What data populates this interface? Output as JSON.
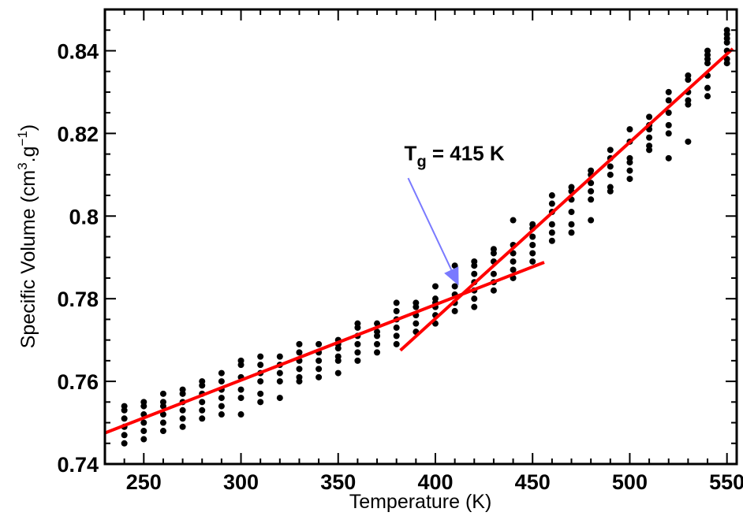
{
  "chart_data": {
    "type": "scatter",
    "title": "",
    "xlabel": "Temperature (K)",
    "ylabel": {
      "main": "Specific Volume (cm",
      "sup1": "3",
      "mid": ".g",
      "sup2": "−1",
      "end": ")"
    },
    "xlim": [
      230,
      555
    ],
    "ylim": [
      0.74,
      0.85
    ],
    "xticks": [
      250,
      300,
      350,
      400,
      450,
      500,
      550
    ],
    "yticks": [
      0.74,
      0.76,
      0.78,
      0.8,
      0.82,
      0.84
    ],
    "xtick_labels": [
      "250",
      "300",
      "350",
      "400",
      "450",
      "500",
      "550"
    ],
    "ytick_labels": [
      "0.74",
      "0.76",
      "0.78",
      "0.8",
      "0.82",
      "0.84"
    ],
    "grid": false,
    "legend": "none",
    "colors": {
      "points": "#000000",
      "fit": "#ff0000",
      "arrow": "#7a7aff"
    },
    "series": [
      {
        "type": "scatter",
        "points": [
          [
            240,
            0.745
          ],
          [
            240,
            0.747
          ],
          [
            240,
            0.749
          ],
          [
            240,
            0.751
          ],
          [
            240,
            0.753
          ],
          [
            240,
            0.754
          ],
          [
            250,
            0.746
          ],
          [
            250,
            0.748
          ],
          [
            250,
            0.75
          ],
          [
            250,
            0.752
          ],
          [
            250,
            0.754
          ],
          [
            250,
            0.755
          ],
          [
            260,
            0.748
          ],
          [
            260,
            0.75
          ],
          [
            260,
            0.752
          ],
          [
            260,
            0.754
          ],
          [
            260,
            0.755
          ],
          [
            260,
            0.757
          ],
          [
            270,
            0.749
          ],
          [
            270,
            0.751
          ],
          [
            270,
            0.753
          ],
          [
            270,
            0.755
          ],
          [
            270,
            0.757
          ],
          [
            270,
            0.758
          ],
          [
            280,
            0.751
          ],
          [
            280,
            0.753
          ],
          [
            280,
            0.755
          ],
          [
            280,
            0.757
          ],
          [
            280,
            0.759
          ],
          [
            280,
            0.76
          ],
          [
            290,
            0.752
          ],
          [
            290,
            0.754
          ],
          [
            290,
            0.756
          ],
          [
            290,
            0.758
          ],
          [
            290,
            0.76
          ],
          [
            290,
            0.762
          ],
          [
            300,
            0.752
          ],
          [
            300,
            0.756
          ],
          [
            300,
            0.758
          ],
          [
            300,
            0.761
          ],
          [
            300,
            0.764
          ],
          [
            300,
            0.765
          ],
          [
            310,
            0.755
          ],
          [
            310,
            0.757
          ],
          [
            310,
            0.76
          ],
          [
            310,
            0.762
          ],
          [
            310,
            0.764
          ],
          [
            310,
            0.766
          ],
          [
            320,
            0.756
          ],
          [
            320,
            0.76
          ],
          [
            320,
            0.762
          ],
          [
            320,
            0.764
          ],
          [
            320,
            0.766
          ],
          [
            330,
            0.76
          ],
          [
            330,
            0.761
          ],
          [
            330,
            0.763
          ],
          [
            330,
            0.765
          ],
          [
            330,
            0.767
          ],
          [
            330,
            0.769
          ],
          [
            340,
            0.761
          ],
          [
            340,
            0.763
          ],
          [
            340,
            0.765
          ],
          [
            340,
            0.767
          ],
          [
            340,
            0.769
          ],
          [
            350,
            0.762
          ],
          [
            350,
            0.765
          ],
          [
            350,
            0.766
          ],
          [
            350,
            0.768
          ],
          [
            350,
            0.769
          ],
          [
            350,
            0.77
          ],
          [
            360,
            0.765
          ],
          [
            360,
            0.767
          ],
          [
            360,
            0.769
          ],
          [
            360,
            0.771
          ],
          [
            360,
            0.773
          ],
          [
            360,
            0.774
          ],
          [
            370,
            0.767
          ],
          [
            370,
            0.769
          ],
          [
            370,
            0.771
          ],
          [
            370,
            0.772
          ],
          [
            370,
            0.774
          ],
          [
            380,
            0.769
          ],
          [
            380,
            0.771
          ],
          [
            380,
            0.773
          ],
          [
            380,
            0.775
          ],
          [
            380,
            0.777
          ],
          [
            380,
            0.779
          ],
          [
            390,
            0.772
          ],
          [
            390,
            0.774
          ],
          [
            390,
            0.776
          ],
          [
            390,
            0.778
          ],
          [
            390,
            0.779
          ],
          [
            400,
            0.774
          ],
          [
            400,
            0.776
          ],
          [
            400,
            0.778
          ],
          [
            400,
            0.779
          ],
          [
            400,
            0.78
          ],
          [
            400,
            0.783
          ],
          [
            410,
            0.777
          ],
          [
            410,
            0.779
          ],
          [
            410,
            0.781
          ],
          [
            410,
            0.783
          ],
          [
            410,
            0.785
          ],
          [
            410,
            0.786
          ],
          [
            410,
            0.788
          ],
          [
            420,
            0.778
          ],
          [
            420,
            0.78
          ],
          [
            420,
            0.782
          ],
          [
            420,
            0.784
          ],
          [
            420,
            0.786
          ],
          [
            420,
            0.788
          ],
          [
            420,
            0.789
          ],
          [
            430,
            0.782
          ],
          [
            430,
            0.784
          ],
          [
            430,
            0.786
          ],
          [
            430,
            0.789
          ],
          [
            430,
            0.791
          ],
          [
            430,
            0.792
          ],
          [
            440,
            0.785
          ],
          [
            440,
            0.787
          ],
          [
            440,
            0.789
          ],
          [
            440,
            0.791
          ],
          [
            440,
            0.793
          ],
          [
            440,
            0.799
          ],
          [
            450,
            0.789
          ],
          [
            450,
            0.791
          ],
          [
            450,
            0.793
          ],
          [
            450,
            0.795
          ],
          [
            450,
            0.797
          ],
          [
            450,
            0.798
          ],
          [
            460,
            0.794
          ],
          [
            460,
            0.796
          ],
          [
            460,
            0.798
          ],
          [
            460,
            0.801
          ],
          [
            460,
            0.803
          ],
          [
            460,
            0.805
          ],
          [
            470,
            0.796
          ],
          [
            470,
            0.798
          ],
          [
            470,
            0.801
          ],
          [
            470,
            0.804
          ],
          [
            470,
            0.806
          ],
          [
            470,
            0.807
          ],
          [
            480,
            0.799
          ],
          [
            480,
            0.804
          ],
          [
            480,
            0.806
          ],
          [
            480,
            0.808
          ],
          [
            480,
            0.81
          ],
          [
            480,
            0.811
          ],
          [
            490,
            0.806
          ],
          [
            490,
            0.807
          ],
          [
            490,
            0.81
          ],
          [
            490,
            0.812
          ],
          [
            490,
            0.814
          ],
          [
            490,
            0.816
          ],
          [
            500,
            0.809
          ],
          [
            500,
            0.811
          ],
          [
            500,
            0.813
          ],
          [
            500,
            0.814
          ],
          [
            500,
            0.818
          ],
          [
            500,
            0.821
          ],
          [
            510,
            0.816
          ],
          [
            510,
            0.817
          ],
          [
            510,
            0.819
          ],
          [
            510,
            0.821
          ],
          [
            510,
            0.822
          ],
          [
            510,
            0.824
          ],
          [
            520,
            0.814
          ],
          [
            520,
            0.82
          ],
          [
            520,
            0.822
          ],
          [
            520,
            0.825
          ],
          [
            520,
            0.828
          ],
          [
            520,
            0.83
          ],
          [
            530,
            0.818
          ],
          [
            530,
            0.827
          ],
          [
            530,
            0.828
          ],
          [
            530,
            0.83
          ],
          [
            530,
            0.833
          ],
          [
            530,
            0.834
          ],
          [
            540,
            0.829
          ],
          [
            540,
            0.831
          ],
          [
            540,
            0.834
          ],
          [
            540,
            0.837
          ],
          [
            540,
            0.838
          ],
          [
            540,
            0.839
          ],
          [
            540,
            0.84
          ],
          [
            550,
            0.837
          ],
          [
            550,
            0.838
          ],
          [
            550,
            0.84
          ],
          [
            550,
            0.842
          ],
          [
            550,
            0.843
          ],
          [
            550,
            0.844
          ],
          [
            550,
            0.845
          ]
        ]
      },
      {
        "type": "line",
        "points": [
          [
            230,
            0.7475
          ],
          [
            456,
            0.7888
          ]
        ]
      },
      {
        "type": "line",
        "points": [
          [
            382,
            0.7675
          ],
          [
            553,
            0.8405
          ]
        ]
      }
    ],
    "annotations": [
      {
        "text_main": "T",
        "text_sub": "g",
        "text_rest": " = 415 K",
        "x": 384,
        "y": 0.8135,
        "arrow_from": [
          386,
          0.8092
        ],
        "arrow_to": [
          412,
          0.7832
        ]
      }
    ]
  }
}
